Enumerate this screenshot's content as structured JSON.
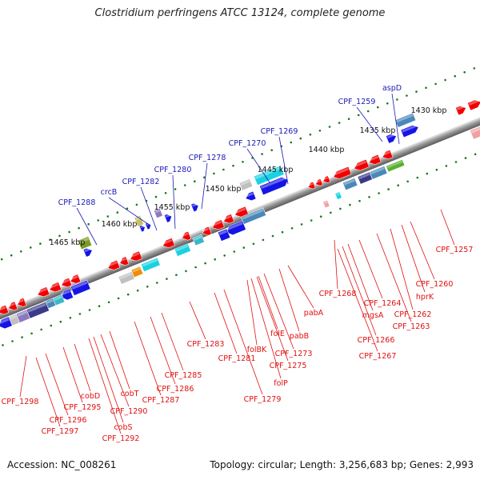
{
  "title": "Clostridium perfringens ATCC 13124, complete genome",
  "footer": {
    "accession": "Accession: NC_008261",
    "topology": "Topology: circular; Length: 3,256,683 bp; Genes: 2,993"
  },
  "colors": {
    "label_upper": "#1a1ab4",
    "label_lower": "#e01010",
    "tick_dot": "#1a7a1a",
    "backbone": "#888888"
  },
  "scale_ticks": [
    "1430 kbp",
    "1435 kbp",
    "1440 kbp",
    "1445 kbp",
    "1450 kbp",
    "1455 kbp",
    "1460 kbp",
    "1465 kbp"
  ],
  "upper_labels": [
    "aspD",
    "CPF_1259",
    "CPF_1269",
    "CPF_1270",
    "CPF_1278",
    "CPF_1280",
    "CPF_1282",
    "crcB",
    "CPF_1288"
  ],
  "lower_labels": [
    "CPF_1257",
    "CPF_1260",
    "hprK",
    "CPF_1262",
    "CPF_1263",
    "CPF_1264",
    "mgsA",
    "CPF_1266",
    "CPF_1267",
    "CPF_1268",
    "pabA",
    "pabB",
    "folE",
    "CPF_1273",
    "CPF_1275",
    "folP",
    "folBK",
    "CPF_1279",
    "CPF_1281",
    "CPF_1283",
    "CPF_1285",
    "CPF_1286",
    "CPF_1287",
    "cobT",
    "CPF_1290",
    "cobS",
    "CPF_1292",
    "cobD",
    "CPF_1295",
    "CPF_1296",
    "CPF_1297",
    "CPF_1298"
  ]
}
